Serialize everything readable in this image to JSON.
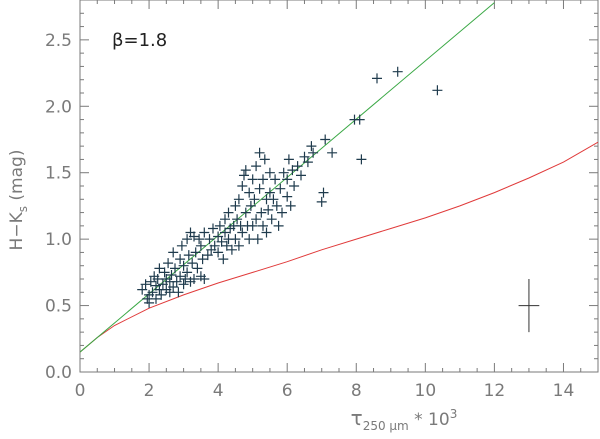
{
  "chart_data": {
    "type": "scatter",
    "annotation": "β=1.8",
    "xlabel_symbol": "τ",
    "xlabel_subscript": "250 μm",
    "xlabel_suffix": " * 10",
    "xlabel_sup": "3",
    "ylabel_main": "H−K",
    "ylabel_sub": "s",
    "ylabel_unit": " (mag)",
    "xlim": [
      0,
      15
    ],
    "ylim": [
      0.0,
      2.8
    ],
    "x_ticks": [
      0,
      2,
      4,
      6,
      8,
      10,
      12,
      14
    ],
    "y_ticks": [
      0.0,
      0.5,
      1.0,
      1.5,
      2.0,
      2.5
    ],
    "x_tick_labels": [
      "0",
      "2",
      "4",
      "6",
      "8",
      "10",
      "12",
      "14"
    ],
    "y_tick_labels": [
      "0.0",
      "0.5",
      "1.0",
      "1.5",
      "2.0",
      "2.5"
    ],
    "colors": {
      "points": "#1f3b4d",
      "fit_line": "#3aa845",
      "model_line": "#e03a3a",
      "axes": "#7a7a7a"
    },
    "fit_line": {
      "x": [
        0,
        12.0
      ],
      "y": [
        0.15,
        2.78
      ]
    },
    "model_curve": {
      "x": [
        0,
        0.5,
        1,
        2,
        3,
        4,
        5,
        6,
        7,
        8,
        9,
        10,
        11,
        12,
        13,
        14,
        15
      ],
      "y": [
        0.15,
        0.26,
        0.35,
        0.48,
        0.58,
        0.67,
        0.75,
        0.83,
        0.92,
        1.0,
        1.08,
        1.16,
        1.25,
        1.35,
        1.46,
        1.58,
        1.73
      ]
    },
    "error_bar": {
      "x": 13.0,
      "y": 0.5,
      "x_err": 0.3,
      "y_err": 0.2
    },
    "points": [
      [
        1.8,
        0.62
      ],
      [
        1.9,
        0.66
      ],
      [
        1.95,
        0.55
      ],
      [
        2.0,
        0.58
      ],
      [
        2.0,
        0.52
      ],
      [
        2.05,
        0.68
      ],
      [
        2.1,
        0.6
      ],
      [
        2.15,
        0.72
      ],
      [
        2.2,
        0.65
      ],
      [
        2.2,
        0.55
      ],
      [
        2.25,
        0.7
      ],
      [
        2.3,
        0.62
      ],
      [
        2.3,
        0.78
      ],
      [
        2.35,
        0.58
      ],
      [
        2.4,
        0.66
      ],
      [
        2.45,
        0.75
      ],
      [
        2.5,
        0.7
      ],
      [
        2.5,
        0.62
      ],
      [
        2.55,
        0.82
      ],
      [
        2.6,
        0.68
      ],
      [
        2.6,
        0.6
      ],
      [
        2.65,
        0.73
      ],
      [
        2.7,
        0.9
      ],
      [
        2.7,
        0.64
      ],
      [
        2.75,
        0.78
      ],
      [
        2.8,
        0.68
      ],
      [
        2.85,
        0.6
      ],
      [
        2.9,
        0.85
      ],
      [
        2.9,
        0.72
      ],
      [
        2.95,
        0.95
      ],
      [
        3.0,
        0.66
      ],
      [
        3.0,
        0.8
      ],
      [
        3.05,
        0.7
      ],
      [
        3.1,
        1.0
      ],
      [
        3.1,
        0.75
      ],
      [
        3.15,
        0.88
      ],
      [
        3.2,
        1.05
      ],
      [
        3.2,
        0.68
      ],
      [
        3.25,
        0.82
      ],
      [
        3.3,
        1.02
      ],
      [
        3.3,
        0.7
      ],
      [
        3.35,
        0.9
      ],
      [
        3.4,
        0.78
      ],
      [
        3.45,
        1.0
      ],
      [
        3.5,
        0.72
      ],
      [
        3.5,
        0.95
      ],
      [
        3.55,
        0.85
      ],
      [
        3.6,
        1.05
      ],
      [
        3.6,
        0.7
      ],
      [
        3.7,
        0.88
      ],
      [
        3.75,
        1.0
      ],
      [
        3.8,
        0.92
      ],
      [
        3.85,
        1.08
      ],
      [
        3.9,
        0.95
      ],
      [
        4.0,
        1.02
      ],
      [
        4.0,
        0.9
      ],
      [
        4.05,
        1.1
      ],
      [
        4.1,
        0.98
      ],
      [
        4.15,
        0.85
      ],
      [
        4.2,
        1.05
      ],
      [
        4.2,
        1.15
      ],
      [
        4.25,
        0.95
      ],
      [
        4.3,
        1.2
      ],
      [
        4.3,
        1.0
      ],
      [
        4.35,
        1.08
      ],
      [
        4.4,
        0.92
      ],
      [
        4.45,
        1.1
      ],
      [
        4.5,
        1.25
      ],
      [
        4.5,
        1.0
      ],
      [
        4.55,
        1.15
      ],
      [
        4.6,
        0.95
      ],
      [
        4.6,
        1.3
      ],
      [
        4.65,
        1.1
      ],
      [
        4.7,
        1.4
      ],
      [
        4.7,
        1.05
      ],
      [
        4.75,
        1.48
      ],
      [
        4.8,
        1.2
      ],
      [
        4.8,
        1.52
      ],
      [
        4.85,
        1.1
      ],
      [
        4.9,
        1.35
      ],
      [
        4.9,
        1.0
      ],
      [
        4.95,
        1.25
      ],
      [
        5.0,
        1.45
      ],
      [
        5.0,
        1.1
      ],
      [
        5.05,
        1.3
      ],
      [
        5.1,
        1.55
      ],
      [
        5.1,
        1.15
      ],
      [
        5.15,
        1.0
      ],
      [
        5.2,
        1.38
      ],
      [
        5.2,
        1.65
      ],
      [
        5.25,
        1.2
      ],
      [
        5.3,
        1.45
      ],
      [
        5.3,
        1.1
      ],
      [
        5.35,
        1.6
      ],
      [
        5.4,
        1.3
      ],
      [
        5.4,
        1.05
      ],
      [
        5.45,
        1.22
      ],
      [
        5.5,
        1.5
      ],
      [
        5.5,
        1.35
      ],
      [
        5.55,
        1.15
      ],
      [
        5.6,
        1.3
      ],
      [
        5.65,
        1.45
      ],
      [
        5.7,
        1.25
      ],
      [
        5.75,
        1.1
      ],
      [
        5.8,
        1.38
      ],
      [
        5.85,
        1.2
      ],
      [
        5.9,
        1.5
      ],
      [
        6.0,
        1.32
      ],
      [
        6.0,
        1.45
      ],
      [
        6.05,
        1.6
      ],
      [
        6.1,
        1.25
      ],
      [
        6.15,
        1.52
      ],
      [
        6.2,
        1.4
      ],
      [
        6.3,
        1.55
      ],
      [
        6.4,
        1.48
      ],
      [
        6.5,
        1.62
      ],
      [
        6.6,
        1.58
      ],
      [
        6.7,
        1.7
      ],
      [
        6.75,
        1.65
      ],
      [
        7.0,
        1.28
      ],
      [
        7.05,
        1.35
      ],
      [
        7.1,
        1.75
      ],
      [
        7.3,
        1.65
      ],
      [
        7.95,
        1.9
      ],
      [
        8.1,
        1.9
      ],
      [
        8.15,
        1.6
      ],
      [
        8.6,
        2.21
      ],
      [
        9.2,
        2.26
      ],
      [
        10.35,
        2.12
      ]
    ]
  }
}
